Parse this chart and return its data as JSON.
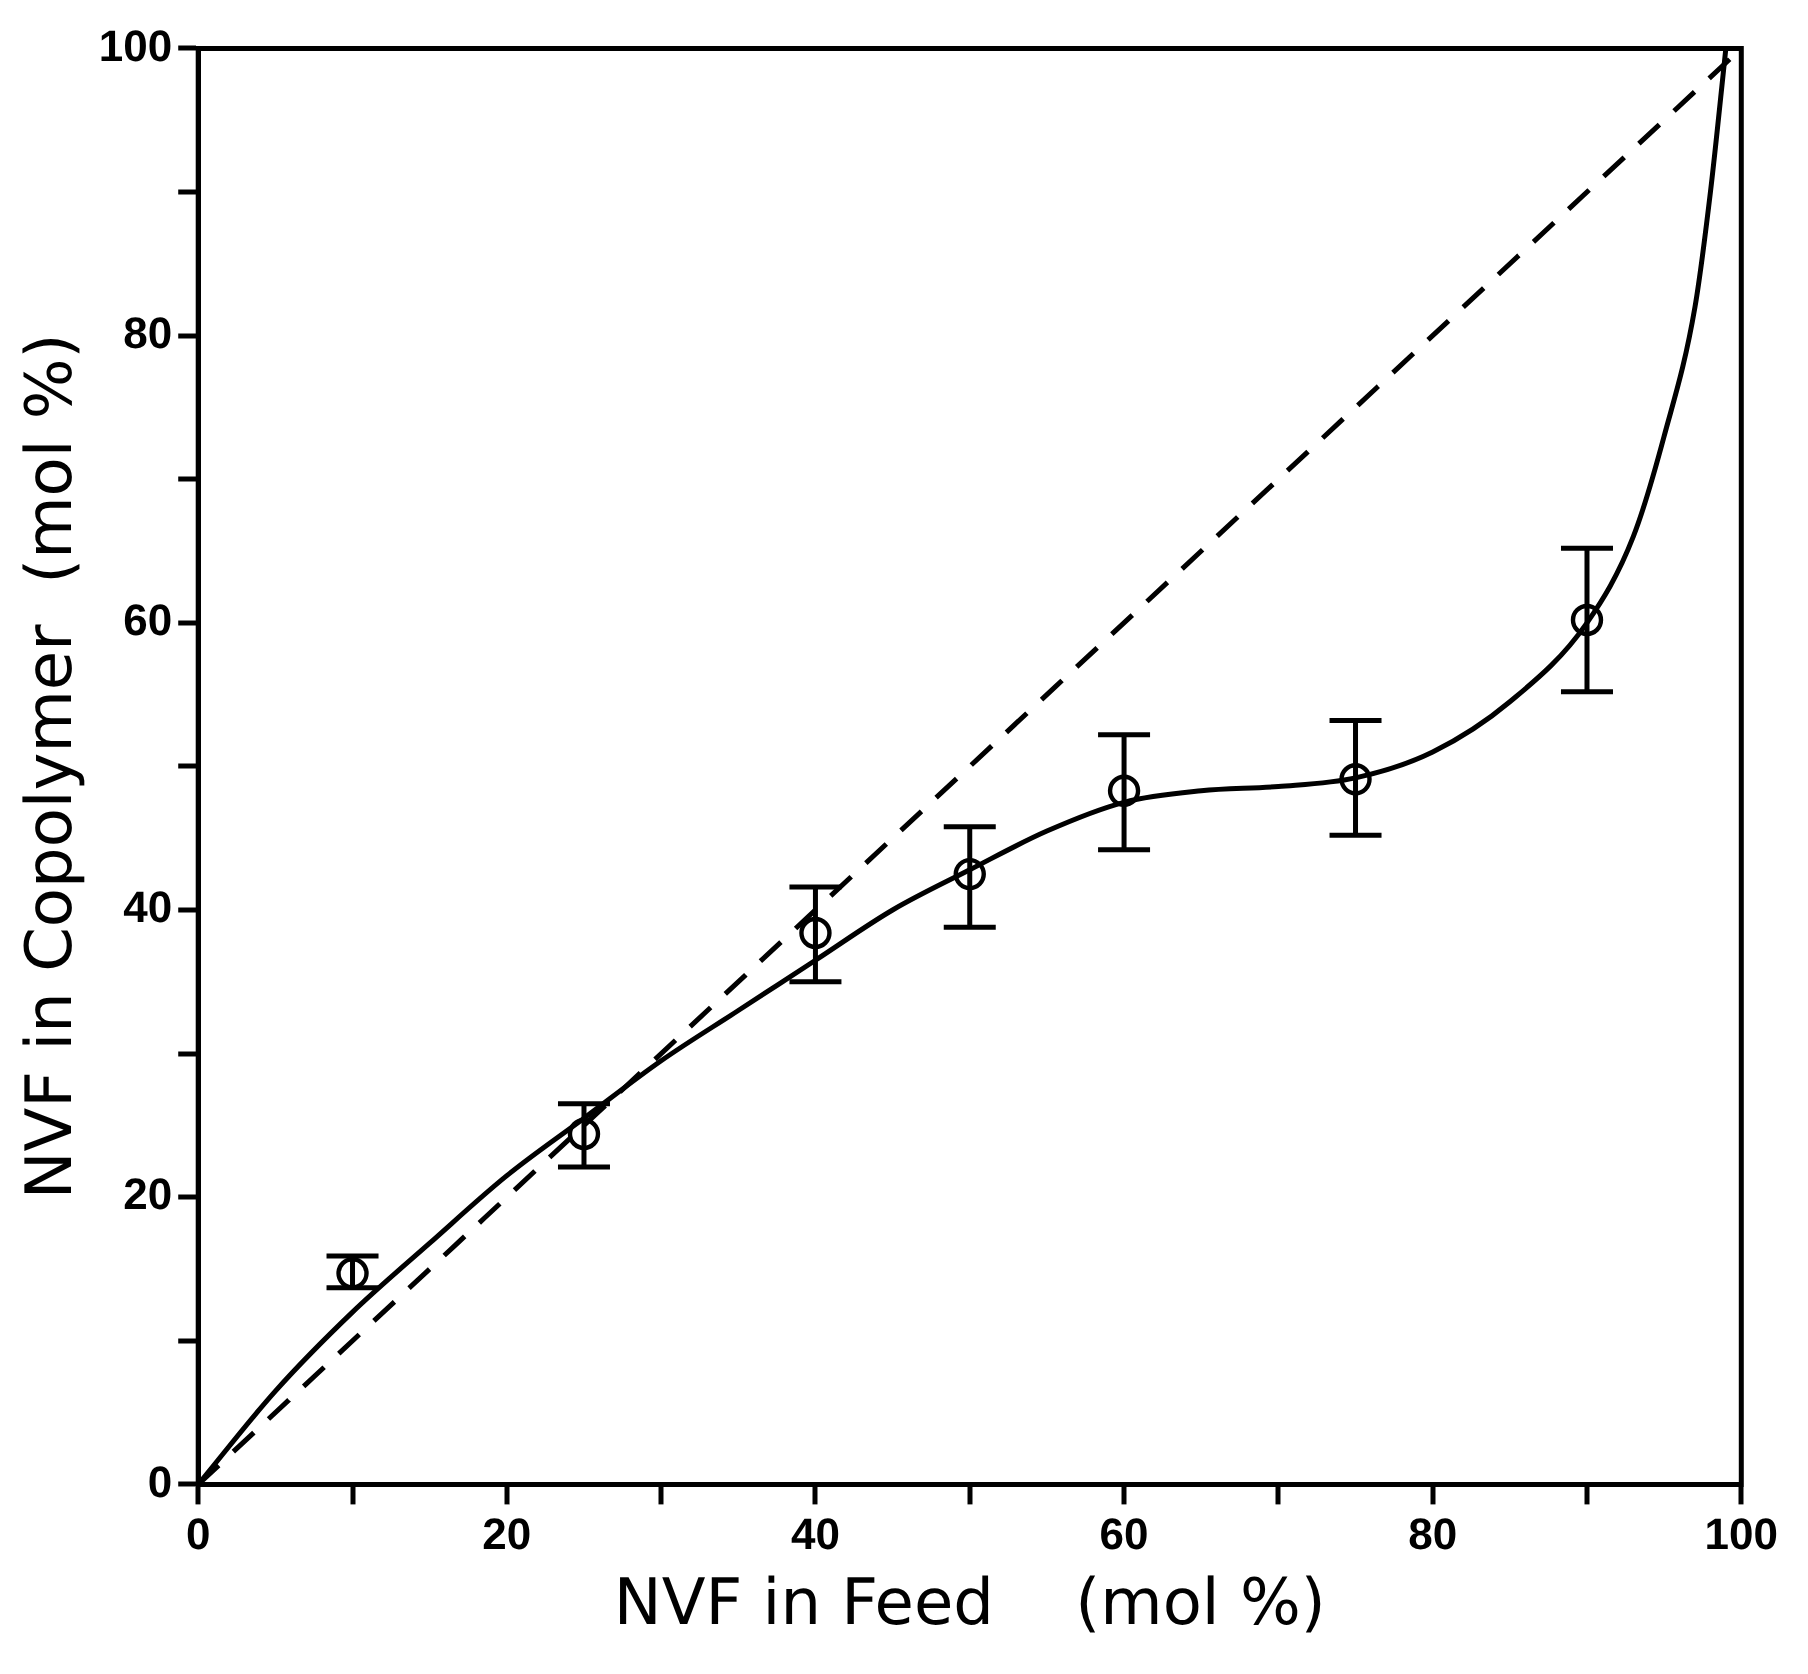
{
  "chart_data": {
    "type": "scatter",
    "xlabel": "NVF in Feed    (mol %)",
    "ylabel": "NVF in Copolymer  (mol %)",
    "xlim": [
      0,
      100
    ],
    "ylim": [
      0,
      100
    ],
    "xticks": [
      0,
      {
        "value": 10,
        "label": null
      },
      20,
      {
        "value": 30,
        "label": null
      },
      40,
      {
        "value": 50,
        "label": null
      },
      60,
      {
        "value": 70,
        "label": null
      },
      80,
      {
        "value": 90,
        "label": null
      },
      100
    ],
    "yticks": [
      0,
      {
        "value": 10,
        "label": null
      },
      20,
      {
        "value": 30,
        "label": null
      },
      40,
      {
        "value": 50,
        "label": null
      },
      60,
      {
        "value": 70,
        "label": null
      },
      80,
      {
        "value": 90,
        "label": null
      },
      100
    ],
    "grid": false,
    "legend": false,
    "series": [
      {
        "type": "scatter",
        "color": "#000000",
        "marker": "circle",
        "x": [
          10,
          25,
          40,
          50,
          60,
          75,
          90
        ],
        "values": [
          14.7,
          24.4,
          38.4,
          42.5,
          48.3,
          49.1,
          60.2
        ],
        "errors": [
          [
            13.7,
            15.9
          ],
          [
            22.1,
            26.5
          ],
          [
            35.0,
            41.6
          ],
          [
            38.8,
            45.8
          ],
          [
            44.2,
            52.2
          ],
          [
            45.2,
            53.2
          ],
          [
            55.2,
            65.2
          ]
        ]
      },
      {
        "type": "line",
        "color": "#000000",
        "marker": "none",
        "line_style": "solid",
        "x": [
          0,
          5,
          10,
          15,
          20,
          25,
          30,
          35,
          40,
          45,
          50,
          55,
          60,
          65,
          70,
          75,
          80,
          85,
          90,
          93,
          95,
          97,
          98,
          99
        ],
        "values": [
          0,
          6.5,
          12,
          16.8,
          21.5,
          25.5,
          29.5,
          33,
          36.5,
          40,
          42.8,
          45.5,
          47.5,
          48.3,
          48.6,
          49.2,
          51,
          54.5,
          60,
          66,
          73,
          82,
          90,
          100
        ]
      },
      {
        "type": "line",
        "color": "#000000",
        "marker": "none",
        "line_style": "dashed",
        "x": [
          0,
          100
        ],
        "values": [
          0,
          100
        ]
      }
    ]
  }
}
